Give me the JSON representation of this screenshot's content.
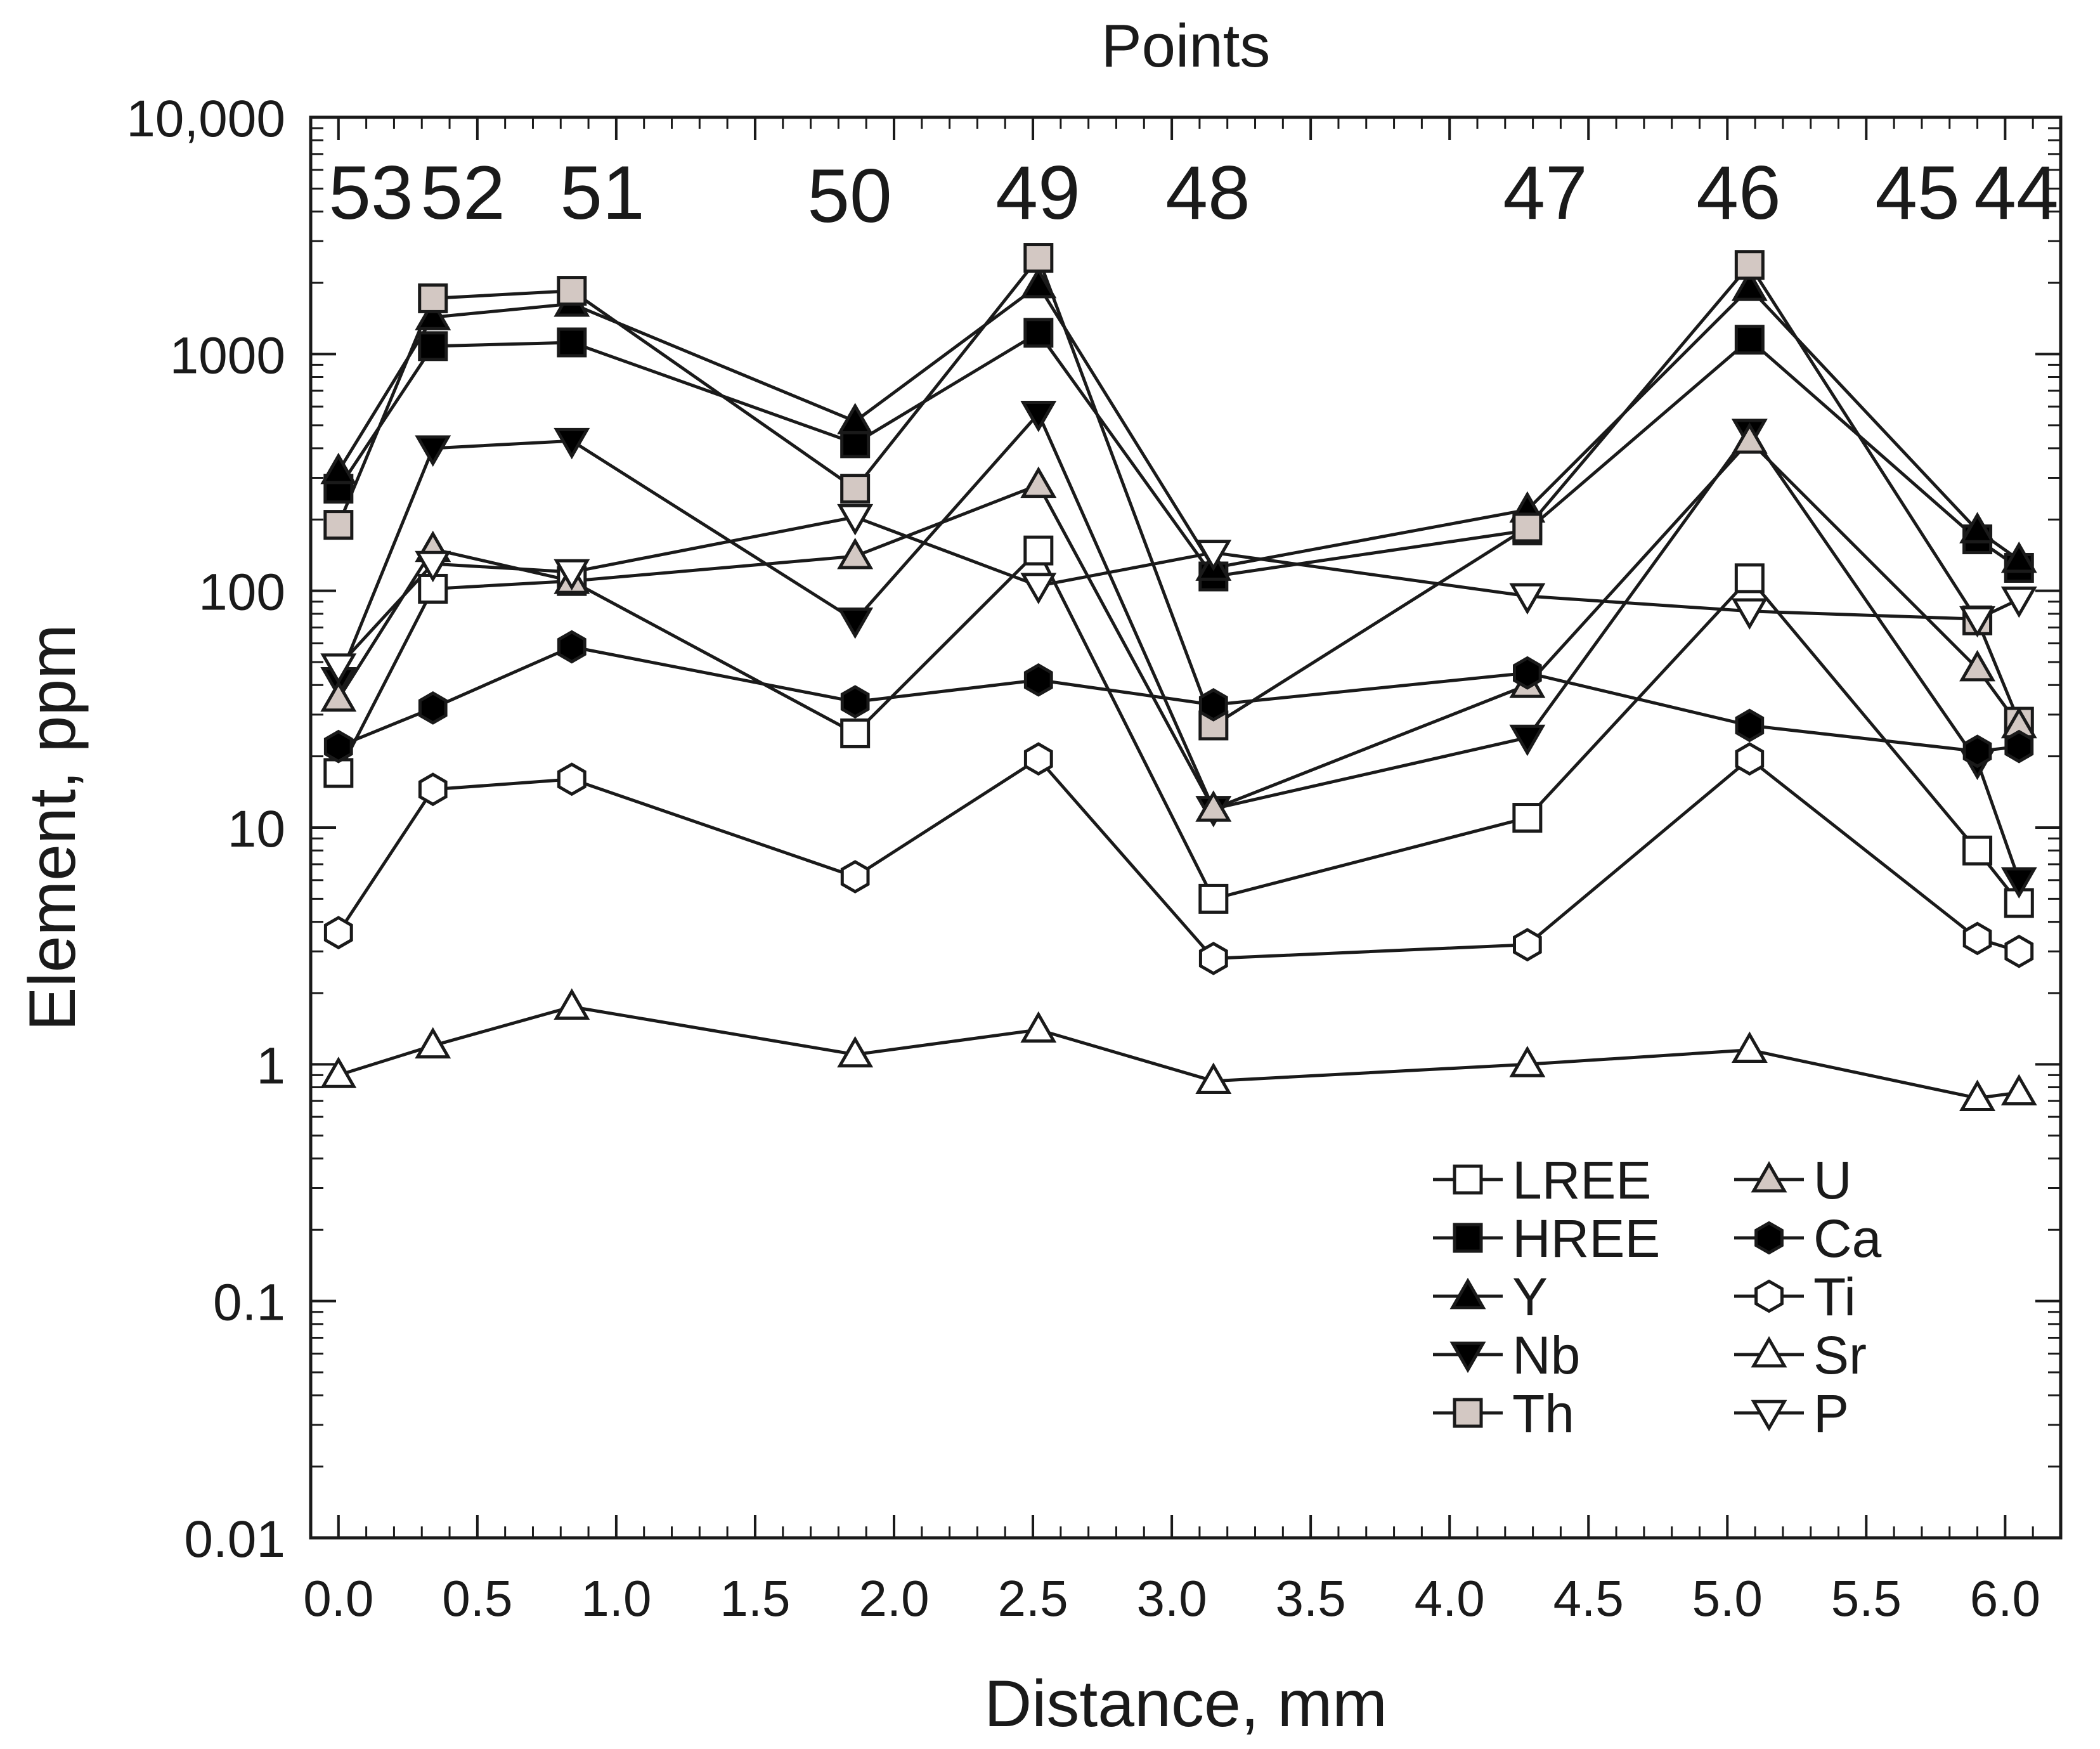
{
  "chart_data": {
    "type": "line",
    "title": "Points",
    "xlabel": "Distance, mm",
    "ylabel": "Element, ppm",
    "xlim": [
      -0.1,
      6.2
    ],
    "ylim": [
      0.01,
      10000
    ],
    "yscale": "log",
    "x_ticks": [
      "0.0",
      "0.5",
      "1.0",
      "1.5",
      "2.0",
      "2.5",
      "3.0",
      "3.5",
      "4.0",
      "4.5",
      "5.0",
      "5.5",
      "6.0"
    ],
    "y_ticks": [
      "0.01",
      "0.1",
      "1",
      "10",
      "100",
      "1000",
      "10,000"
    ],
    "points": [
      {
        "label": "53",
        "x": 0.0
      },
      {
        "label": "52",
        "x": 0.34
      },
      {
        "label": "51",
        "x": 0.84
      },
      {
        "label": "50",
        "x": 1.86
      },
      {
        "label": "49",
        "x": 2.52
      },
      {
        "label": "48",
        "x": 3.15
      },
      {
        "label": "47",
        "x": 4.28
      },
      {
        "label": "46",
        "x": 5.08
      },
      {
        "label": "45",
        "x": 5.9
      },
      {
        "label": "44",
        "x": 6.05
      }
    ],
    "x": [
      0.0,
      0.34,
      0.84,
      1.86,
      2.52,
      3.15,
      4.28,
      5.08,
      5.9,
      6.05
    ],
    "legend_position": "bottom-right",
    "series": [
      {
        "name": "LREE",
        "marker": "square",
        "fill": "#ffffff",
        "values": [
          17,
          102,
          110,
          25,
          148,
          5,
          11,
          113,
          8,
          4.8
        ]
      },
      {
        "name": "HREE",
        "marker": "square",
        "fill": "#000000",
        "values": [
          270,
          1080,
          1120,
          420,
          1230,
          115,
          180,
          1150,
          165,
          125
        ]
      },
      {
        "name": "Y",
        "marker": "triangle-up",
        "fill": "#000000",
        "values": [
          320,
          1430,
          1630,
          520,
          1950,
          125,
          220,
          1900,
          180,
          135
        ]
      },
      {
        "name": "Nb",
        "marker": "triangle-down",
        "fill": "#000000",
        "values": [
          42,
          400,
          430,
          75,
          560,
          12,
          24,
          470,
          19,
          6
        ]
      },
      {
        "name": "Th",
        "marker": "square",
        "fill": "#d3c8c3",
        "values": [
          190,
          1720,
          1850,
          270,
          2550,
          27,
          185,
          2380,
          75,
          28
        ]
      },
      {
        "name": "U",
        "marker": "triangle-up",
        "fill": "#d3c8c3",
        "values": [
          35,
          150,
          110,
          140,
          280,
          12,
          40,
          430,
          47,
          27
        ]
      },
      {
        "name": "Ca",
        "marker": "hexagon",
        "fill": "#000000",
        "values": [
          22,
          32,
          58,
          34,
          42,
          33,
          45,
          27,
          21,
          22
        ]
      },
      {
        "name": "Ti",
        "marker": "hexagon",
        "fill": "#ffffff",
        "values": [
          3.6,
          14.5,
          16,
          6.2,
          19.5,
          2.8,
          3.2,
          19.5,
          3.4,
          3
        ]
      },
      {
        "name": "Sr",
        "marker": "triangle-up",
        "fill": "#ffffff",
        "values": [
          0.9,
          1.2,
          1.75,
          1.1,
          1.4,
          0.85,
          1,
          1.15,
          0.72,
          0.76
        ]
      },
      {
        "name": "P",
        "marker": "triangle-down",
        "fill": "#ffffff",
        "values": [
          48,
          130,
          120,
          205,
          105,
          145,
          95,
          82,
          76,
          92
        ]
      }
    ]
  }
}
